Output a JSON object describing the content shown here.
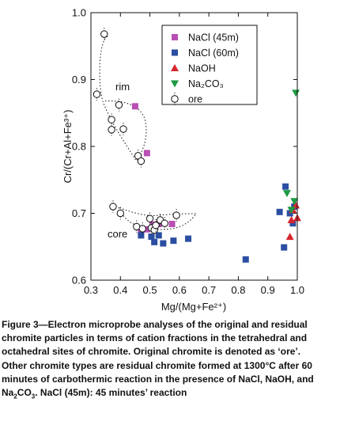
{
  "chart_data": {
    "type": "scatter",
    "xlabel": "Mg/(Mg+Fe²⁺)",
    "ylabel": "Cr/(Cr+Al+Fe³⁺)",
    "xlim": [
      0.3,
      1.0
    ],
    "ylim": [
      0.6,
      1.0
    ],
    "xticks": [
      "0.3",
      "0.4",
      "0.5",
      "0.6",
      "0.7",
      "0.8",
      "0.9",
      "1.0"
    ],
    "yticks": [
      "0.6",
      "0.7",
      "0.8",
      "0.9",
      "1.0"
    ],
    "legend_position": "top-right",
    "annotations": [
      "rim",
      "core"
    ],
    "series": [
      {
        "name": "NaCl (45m)",
        "marker": "square",
        "color": "#b94fb3",
        "points": [
          [
            0.45,
            0.86
          ],
          [
            0.49,
            0.79
          ],
          [
            0.47,
            0.672
          ],
          [
            0.49,
            0.676
          ],
          [
            0.51,
            0.683
          ],
          [
            0.53,
            0.684
          ],
          [
            0.575,
            0.684
          ]
        ]
      },
      {
        "name": "NaCl (60m)",
        "marker": "square",
        "color": "#2b4ea2",
        "points": [
          [
            0.47,
            0.667
          ],
          [
            0.505,
            0.665
          ],
          [
            0.515,
            0.657
          ],
          [
            0.53,
            0.667
          ],
          [
            0.545,
            0.655
          ],
          [
            0.58,
            0.659
          ],
          [
            0.63,
            0.662
          ],
          [
            0.825,
            0.631
          ],
          [
            0.94,
            0.702
          ],
          [
            0.955,
            0.649
          ],
          [
            0.96,
            0.74
          ],
          [
            0.975,
            0.7
          ],
          [
            0.985,
            0.685
          ],
          [
            0.99,
            0.71
          ]
        ]
      },
      {
        "name": "NaOH",
        "marker": "triangle-up",
        "color": "#d7262e",
        "points": [
          [
            0.975,
            0.665
          ],
          [
            0.98,
            0.69
          ],
          [
            0.985,
            0.705
          ],
          [
            0.995,
            0.712
          ],
          [
            1.0,
            0.693
          ]
        ]
      },
      {
        "name": "Na₂CO₃",
        "marker": "triangle-down",
        "color": "#1e9a44",
        "points": [
          [
            0.965,
            0.73
          ],
          [
            0.98,
            0.705
          ],
          [
            0.99,
            0.718
          ],
          [
            0.995,
            0.88
          ]
        ]
      },
      {
        "name": "ore",
        "marker": "circle-open",
        "color": "#111111",
        "points": [
          [
            0.32,
            0.878
          ],
          [
            0.345,
            0.968
          ],
          [
            0.37,
            0.84
          ],
          [
            0.37,
            0.825
          ],
          [
            0.395,
            0.862
          ],
          [
            0.41,
            0.826
          ],
          [
            0.46,
            0.786
          ],
          [
            0.47,
            0.778
          ],
          [
            0.375,
            0.71
          ],
          [
            0.4,
            0.7
          ],
          [
            0.455,
            0.68
          ],
          [
            0.475,
            0.677
          ],
          [
            0.5,
            0.692
          ],
          [
            0.505,
            0.678
          ],
          [
            0.515,
            0.675
          ],
          [
            0.52,
            0.682
          ],
          [
            0.535,
            0.69
          ],
          [
            0.55,
            0.685
          ],
          [
            0.59,
            0.697
          ]
        ]
      }
    ]
  },
  "caption": {
    "line1": "Figure 3—Electron microprobe analyses of the original and residual",
    "line2": "chromite particles in terms of cation fractions in the tetrahedral and",
    "line3": "octahedral sites of chromite. Original chromite is denoted as ‘ore’.",
    "line4": "Other chromite types are residual chromite formed at 1300°C after 60",
    "line5": "minutes of carbothermic reaction in the presence of NaCl, NaOH, and",
    "line6_pre": "Na",
    "line6_sub": "2",
    "line6_post": "CO",
    "line6_sub2": "3",
    "line6_end": ". NaCl (45m): 45 minutes’ reaction"
  }
}
